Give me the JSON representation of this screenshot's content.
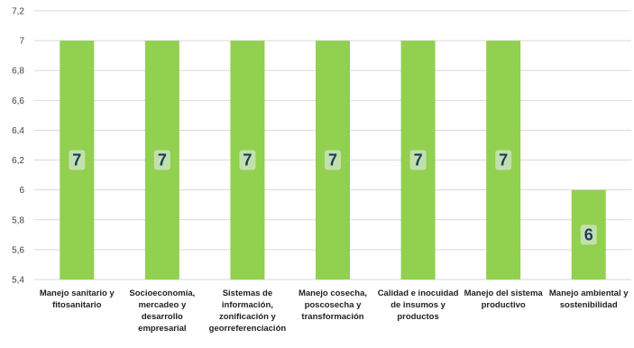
{
  "chart_data": {
    "type": "bar",
    "categories": [
      "Manejo sanitario y fitosanitario",
      "Socioeconomía, mercadeo y desarrollo empresarial",
      "Sistemas de información, zonificación y georreferenciación",
      "Manejo cosecha, poscosecha y transformación",
      "Calidad e inocuidad de insumos y productos",
      "Manejo del sistema productivo",
      "Manejo ambiental y sostenibilidad"
    ],
    "values": [
      7,
      7,
      7,
      7,
      7,
      7,
      6
    ],
    "data_labels": [
      "7",
      "7",
      "7",
      "7",
      "7",
      "7",
      "6"
    ],
    "yticks": [
      "5,4",
      "5,6",
      "5,8",
      "6",
      "6,2",
      "6,4",
      "6,6",
      "6,8",
      "7",
      "7,2"
    ],
    "ylim": [
      5.4,
      7.2
    ],
    "grid": true,
    "legend": "none",
    "colors": {
      "bar": "#92D050",
      "label_text": "#1F3864",
      "label_bg": "#E8EEF7",
      "grid": "#D9D9D9"
    }
  }
}
